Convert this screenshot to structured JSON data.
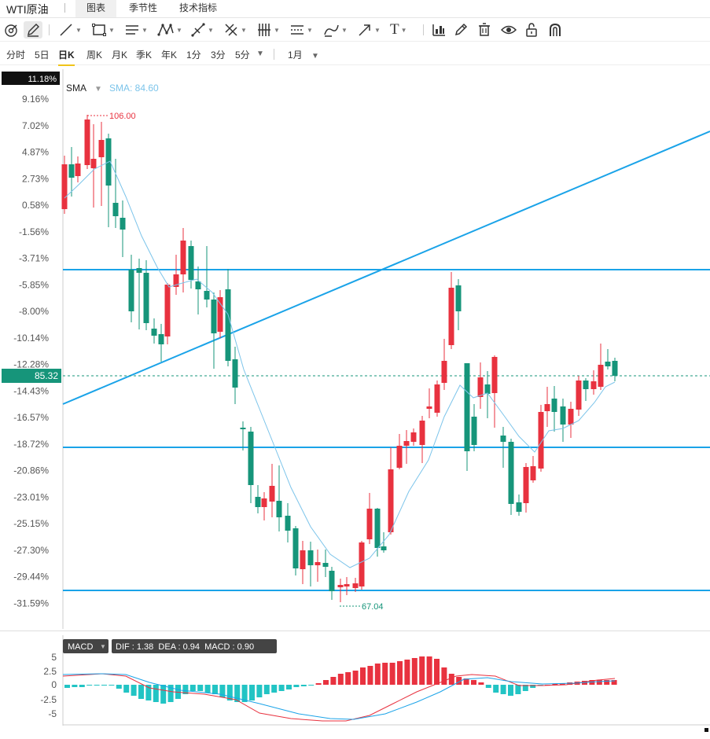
{
  "instrument": "WTI原油",
  "tabs": [
    {
      "label": "图表",
      "active": true
    },
    {
      "label": "季节性",
      "active": false
    },
    {
      "label": "技术指标",
      "active": false
    }
  ],
  "toolbar_icons": [
    "magnet-icon",
    "pencil-icon",
    "line-icon",
    "rectangle-icon",
    "channel-icon",
    "pattern-icon",
    "measure-icon",
    "fib-icon",
    "gann-icon",
    "parallel-icon",
    "brush-icon",
    "arrow-icon",
    "text-icon",
    "indicator-icon",
    "edit-icon",
    "trash-icon",
    "eye-icon",
    "lock-icon",
    "magnet-u-icon"
  ],
  "text_tool_label": "T",
  "periods": [
    "分时",
    "5日",
    "日K",
    "周K",
    "月K",
    "季K",
    "年K",
    "1分",
    "3分",
    "5分"
  ],
  "active_period": "日K",
  "range_label": "1月",
  "chart": {
    "yaxis_labels": [
      "11.18%",
      "9.16%",
      "7.02%",
      "4.87%",
      "2.73%",
      "0.58%",
      "-1.56%",
      "-3.71%",
      "-5.85%",
      "-8.00%",
      "-10.14%",
      "-12.28%",
      "-14.43%",
      "-16.57%",
      "-18.72%",
      "-20.86%",
      "-23.01%",
      "-25.15%",
      "-27.30%",
      "-29.44%",
      "-31.59%"
    ],
    "current_price_label": "85.32",
    "indicator_label": "SMA",
    "sma_value_label": "SMA: 84.60",
    "max_label": "106.00",
    "min_label": "67.04",
    "colors": {
      "up": "#e8323f",
      "down": "#16957a",
      "lines": "#1aa3e8",
      "sma": "#7cc4ea"
    }
  },
  "macd": {
    "button_label": "MACD",
    "values_label": "DIF : 1.38  DEA : 0.94  MACD : 0.90",
    "yaxis_labels": [
      "5",
      "2.5",
      "0",
      "-2.5",
      "-5"
    ]
  },
  "chart_data": {
    "type": "candlestick",
    "title": "WTI原油",
    "sma_last": 84.6,
    "last_close": 85.32,
    "high": 106.0,
    "low": 67.04,
    "macd": {
      "DIF": 1.38,
      "DEA": 0.94,
      "MACD": 0.9
    }
  }
}
